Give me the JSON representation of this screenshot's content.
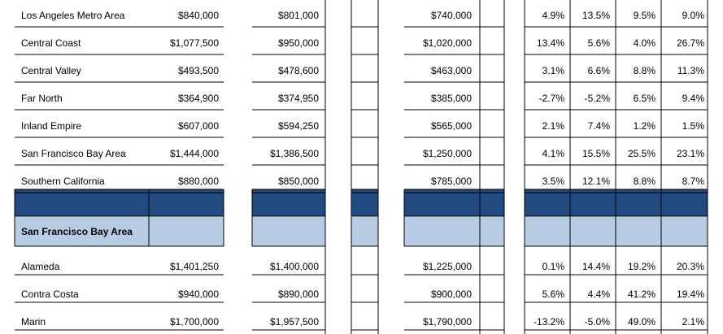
{
  "table": {
    "rows": [
      [
        "Los Angeles Metro Area",
        "$840,000",
        "$801,000",
        "$740,000",
        "4.9%",
        "13.5%",
        "9.5%",
        "9.0%"
      ],
      [
        "Central Coast",
        "$1,077,500",
        "$950,000",
        "$1,020,000",
        "13.4%",
        "5.6%",
        "4.0%",
        "26.7%"
      ],
      [
        "Central Valley",
        "$493,500",
        "$478,600",
        "$463,000",
        "3.1%",
        "6.6%",
        "8.8%",
        "11.3%"
      ],
      [
        "Far North",
        "$364,900",
        "$374,950",
        "$385,000",
        "-2.7%",
        "-5.2%",
        "6.5%",
        "9.4%"
      ],
      [
        "Inland Empire",
        "$607,000",
        "$594,250",
        "$565,000",
        "2.1%",
        "7.4%",
        "1.2%",
        "1.5%"
      ],
      [
        "San Francisco Bay Area",
        "$1,444,000",
        "$1,386,500",
        "$1,250,000",
        "4.1%",
        "15.5%",
        "25.5%",
        "23.1%"
      ],
      [
        "Southern California",
        "$880,000",
        "$850,000",
        "$785,000",
        "3.5%",
        "12.1%",
        "8.8%",
        "8.7%"
      ]
    ],
    "section_title": "San Francisco Bay Area",
    "section_rows": [
      [
        "Alameda",
        "$1,401,250",
        "$1,400,000",
        "$1,225,000",
        "0.1%",
        "14.4%",
        "19.2%",
        "20.3%"
      ],
      [
        "Contra Costa",
        "$940,000",
        "$890,000",
        "$900,000",
        "5.6%",
        "4.4%",
        "41.2%",
        "19.4%"
      ],
      [
        "Marin",
        "$1,700,000",
        "$1,957,500",
        "$1,790,000",
        "-13.2%",
        "-5.0%",
        "49.0%",
        "2.1%"
      ]
    ]
  }
}
